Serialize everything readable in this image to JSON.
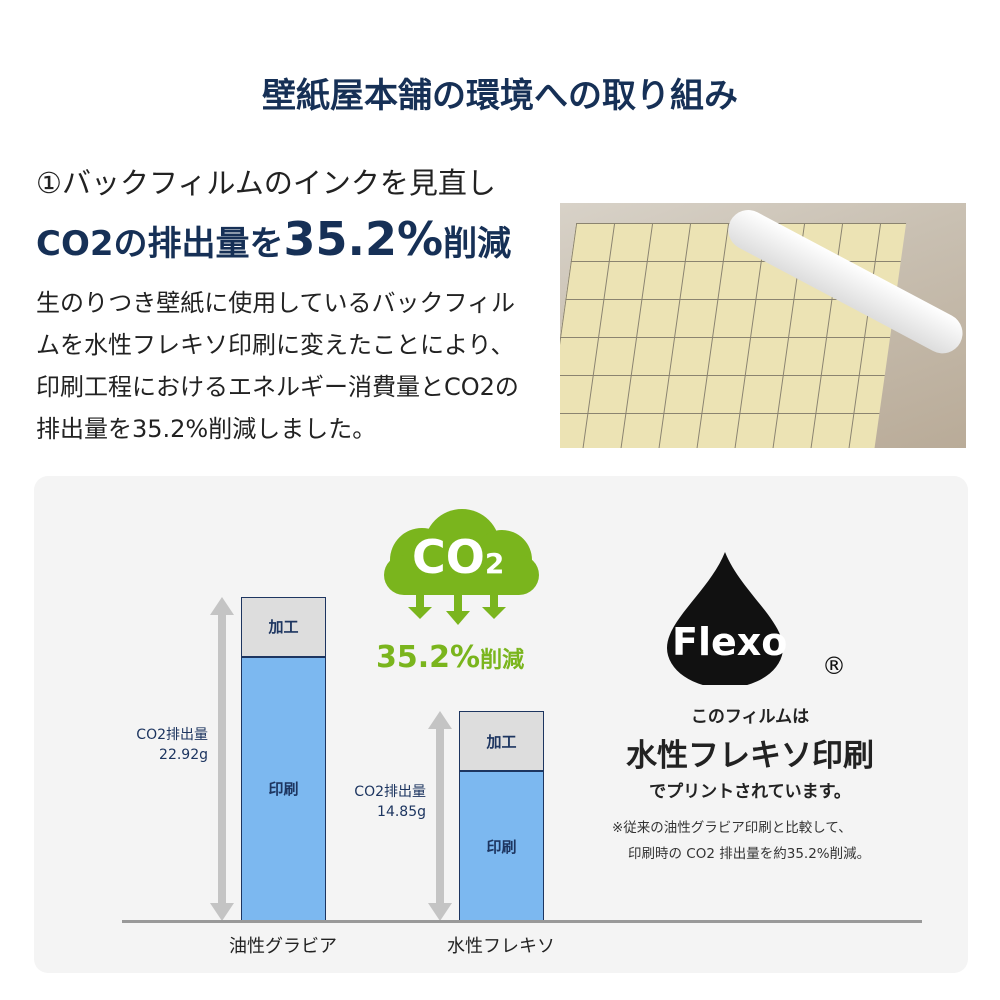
{
  "title": "壁紙屋本舗の環境への取り組み",
  "section": {
    "heading1": "①バックフィルムのインクを見直し",
    "heading2_prefix": "CO2の排出量を",
    "heading2_value": "35.2%",
    "heading2_suffix": "削減",
    "description": "生のりつき壁紙に使用しているバックフィルムを水性フレキソ印刷に変えたことにより、印刷工程におけるエネルギー消費量とCO2の排出量を35.2%削減しました。"
  },
  "photo": {
    "icon": "wallpaper-backfilm-photo"
  },
  "cloud": {
    "text": "CO",
    "sub": "2",
    "reduction": "35.2%",
    "reduction_suffix": "削減",
    "colors": {
      "cloud": "#7ab51d"
    }
  },
  "flexo": {
    "logo_text": "Flexo",
    "registered": "®",
    "line1": "このフィルムは",
    "line2": "水性フレキソ印刷",
    "line3": "でプリントされています。",
    "note1": "※従来の油性グラビア印刷と比較して、",
    "note2": "印刷時の CO2 排出量を約35.2%削減。"
  },
  "chart_data": {
    "type": "bar",
    "stacked": true,
    "categories": [
      "油性グラビア",
      "水性フレキソ"
    ],
    "series": [
      {
        "name": "印刷",
        "values": [
          18.68,
          10.61
        ],
        "color": "#7cb8f0"
      },
      {
        "name": "加工",
        "values": [
          4.24,
          4.24
        ],
        "color": "#dddddd"
      }
    ],
    "totals_label": "CO2排出量",
    "totals": [
      "22.92g",
      "14.85g"
    ],
    "total_values": [
      22.92,
      14.85
    ],
    "ylim": [
      0,
      22.92
    ]
  }
}
